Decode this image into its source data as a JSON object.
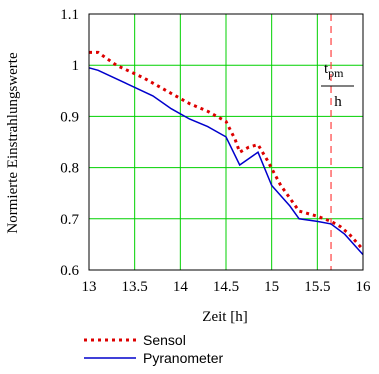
{
  "chart_data": {
    "type": "line",
    "xlabel": "Zeit [h]",
    "ylabel": "Normierte Einstrahlungswerte",
    "xlim": [
      13,
      16
    ],
    "ylim": [
      0.6,
      1.1
    ],
    "xticks": [
      13,
      13.5,
      14,
      14.5,
      15,
      15.5,
      16
    ],
    "yticks": [
      0.6,
      0.7,
      0.8,
      0.9,
      1,
      1.1
    ],
    "xtick_labels": [
      "13",
      "13.5",
      "14",
      "14.5",
      "15",
      "15.5",
      "16"
    ],
    "ytick_labels": [
      "0.6",
      "0.7",
      "0.8",
      "0.9",
      "1",
      "1.1"
    ],
    "grid": true,
    "legend_position": "bottom",
    "series": [
      {
        "name": "Sensol",
        "color": "#dd0000",
        "style": "dotted",
        "x": [
          13.0,
          13.1,
          13.3,
          13.6,
          13.9,
          14.1,
          14.3,
          14.5,
          14.6,
          14.65,
          14.75,
          14.85,
          14.95,
          15.1,
          15.3,
          15.5,
          15.65,
          15.75,
          15.85,
          16.0
        ],
        "y": [
          1.025,
          1.025,
          1.0,
          0.975,
          0.945,
          0.925,
          0.91,
          0.89,
          0.855,
          0.83,
          0.84,
          0.845,
          0.815,
          0.765,
          0.715,
          0.705,
          0.695,
          0.685,
          0.67,
          0.64
        ]
      },
      {
        "name": "Pyranometer",
        "color": "#0000cc",
        "style": "solid",
        "x": [
          13.0,
          13.1,
          13.4,
          13.7,
          13.9,
          14.1,
          14.3,
          14.5,
          14.65,
          14.85,
          15.0,
          15.2,
          15.3,
          15.5,
          15.65,
          15.8,
          16.0
        ],
        "y": [
          0.995,
          0.99,
          0.965,
          0.94,
          0.915,
          0.895,
          0.88,
          0.86,
          0.805,
          0.83,
          0.765,
          0.725,
          0.7,
          0.695,
          0.69,
          0.67,
          0.63
        ]
      }
    ],
    "vline": {
      "x": 15.65,
      "color": "#ff4040",
      "style": "dashed"
    },
    "annotation": {
      "numerator": "t",
      "subscript": "pm",
      "denominator": "h"
    }
  }
}
